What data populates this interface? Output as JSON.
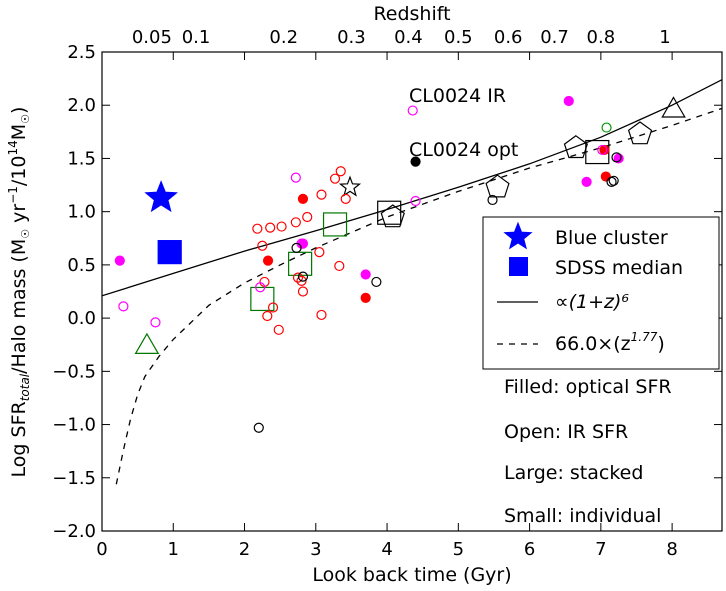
{
  "chart_data": {
    "type": "scatter",
    "xlabel": "Look back time (Gyr)",
    "ylabel": "Log SFR/Halo mass",
    "ylabel_parts": {
      "pre": "Log SFR",
      "sub": "total",
      "mid": "/Halo mass (M",
      "sun": "☉",
      "unit": " yr",
      "exp1": "−1",
      "slash": "/10",
      "exp14": "14",
      "msun": "M",
      "close": ")"
    },
    "toplabel": "Redshift",
    "xlim": [
      0,
      8.7
    ],
    "ylim": [
      -2.0,
      2.5
    ],
    "xticks": [
      "0",
      "1",
      "2",
      "3",
      "4",
      "5",
      "6",
      "7",
      "8"
    ],
    "yticks": [
      "−2.0",
      "−1.5",
      "−1.0",
      "−0.5",
      "0.0",
      "0.5",
      "1.0",
      "1.5",
      "2.0",
      "2.5"
    ],
    "ytick_values": [
      -2.0,
      -1.5,
      -1.0,
      -0.5,
      0.0,
      0.5,
      1.0,
      1.5,
      2.0,
      2.5
    ],
    "top_ticks": [
      {
        "label": "0.05",
        "t": 0.7
      },
      {
        "label": "0.1",
        "t": 1.32
      },
      {
        "label": "0.2",
        "t": 2.55
      },
      {
        "label": "0.3",
        "t": 3.5
      },
      {
        "label": "0.4",
        "t": 4.3
      },
      {
        "label": "0.5",
        "t": 5.0
      },
      {
        "label": "0.6",
        "t": 5.7
      },
      {
        "label": "0.7",
        "t": 6.35
      },
      {
        "label": "0.8",
        "t": 7.0
      },
      {
        "label": "1",
        "t": 7.9
      }
    ],
    "annotations": [
      {
        "text": "CL0024 IR",
        "x": 4.3,
        "y": 2.05
      },
      {
        "text": "CL0024 opt",
        "x": 4.3,
        "y": 1.57
      }
    ],
    "legend": {
      "position": "right",
      "entries": [
        "Blue cluster",
        "SDSS median",
        "∝(1+z)⁶",
        "66.0×(z"
      ],
      "entry4_suffix": ")",
      "entry4_exp": "1.77"
    },
    "notes": [
      "Filled: optical SFR",
      "Open: IR SFR",
      "Large: stacked",
      "Small: individual"
    ],
    "series": [
      {
        "name": "Blue cluster",
        "marker": "star",
        "color": "#0000ff",
        "filled": true,
        "size": "large",
        "points": [
          [
            0.83,
            1.13
          ]
        ]
      },
      {
        "name": "SDSS median",
        "marker": "square",
        "color": "#0000ff",
        "filled": true,
        "size": "large",
        "points": [
          [
            0.95,
            0.62
          ]
        ]
      },
      {
        "name": "Large open triangles",
        "marker": "triangle",
        "color": "#000000",
        "filled": false,
        "size": "large",
        "points": [
          [
            8.02,
            1.95
          ]
        ]
      },
      {
        "name": "Large open triangle green",
        "marker": "triangle",
        "color": "#007700",
        "filled": false,
        "size": "large",
        "points": [
          [
            0.63,
            -0.27
          ]
        ]
      },
      {
        "name": "Large open squares green",
        "marker": "square",
        "color": "#007700",
        "filled": false,
        "size": "large",
        "points": [
          [
            2.25,
            0.18
          ],
          [
            2.78,
            0.51
          ],
          [
            3.27,
            0.88
          ]
        ]
      },
      {
        "name": "Large open squares black",
        "marker": "square",
        "color": "#000000",
        "filled": false,
        "size": "large",
        "points": [
          [
            4.03,
            0.99
          ],
          [
            6.95,
            1.56
          ]
        ]
      },
      {
        "name": "Large open pentagons",
        "marker": "pentagon",
        "color": "#000000",
        "filled": false,
        "size": "large",
        "points": [
          [
            4.08,
            0.95
          ],
          [
            5.55,
            1.23
          ],
          [
            6.65,
            1.6
          ],
          [
            7.55,
            1.73
          ]
        ]
      },
      {
        "name": "Small open star",
        "marker": "star",
        "color": "#000000",
        "filled": false,
        "size": "small",
        "points": [
          [
            3.48,
            1.23
          ]
        ]
      },
      {
        "name": "Open red circles",
        "marker": "circle",
        "color": "#ff0000",
        "filled": false,
        "size": "small",
        "points": [
          [
            2.18,
            0.84
          ],
          [
            2.25,
            0.68
          ],
          [
            2.36,
            0.85
          ],
          [
            2.52,
            0.86
          ],
          [
            2.72,
            0.9
          ],
          [
            2.75,
            0.38
          ],
          [
            2.82,
            0.25
          ],
          [
            2.88,
            0.95
          ],
          [
            3.05,
            0.62
          ],
          [
            3.08,
            1.16
          ],
          [
            3.27,
            1.31
          ],
          [
            3.35,
            1.38
          ],
          [
            3.42,
            1.12
          ],
          [
            3.33,
            0.49
          ],
          [
            3.08,
            0.03
          ],
          [
            2.4,
            0.1
          ],
          [
            2.48,
            -0.11
          ],
          [
            2.32,
            0.02
          ],
          [
            2.28,
            0.34
          ],
          [
            2.8,
            0.35
          ]
        ]
      },
      {
        "name": "Filled red circles",
        "marker": "circle",
        "color": "#ff0000",
        "filled": true,
        "size": "small",
        "points": [
          [
            2.33,
            0.54
          ],
          [
            2.82,
            1.12
          ],
          [
            3.7,
            0.19
          ],
          [
            7.05,
            1.58
          ],
          [
            7.07,
            1.33
          ]
        ]
      },
      {
        "name": "Open magenta circles",
        "marker": "circle",
        "color": "#ff00ff",
        "filled": false,
        "size": "small",
        "points": [
          [
            0.3,
            0.11
          ],
          [
            0.75,
            -0.04
          ],
          [
            2.72,
            1.32
          ],
          [
            2.22,
            0.29
          ],
          [
            2.8,
            0.7
          ],
          [
            4.4,
            1.1
          ],
          [
            4.36,
            1.95
          ],
          [
            7.02,
            1.58
          ]
        ]
      },
      {
        "name": "Filled magenta circles",
        "marker": "circle",
        "color": "#ff00ff",
        "filled": true,
        "size": "small",
        "points": [
          [
            0.25,
            0.54
          ],
          [
            2.82,
            0.7
          ],
          [
            3.7,
            0.41
          ],
          [
            6.55,
            2.04
          ],
          [
            6.8,
            1.28
          ],
          [
            7.25,
            1.5
          ]
        ]
      },
      {
        "name": "Open black circles",
        "marker": "circle",
        "color": "#000000",
        "filled": false,
        "size": "small",
        "points": [
          [
            2.2,
            -1.03
          ],
          [
            2.73,
            0.66
          ],
          [
            2.82,
            0.39
          ],
          [
            3.85,
            0.34
          ],
          [
            5.48,
            1.11
          ],
          [
            7.15,
            1.28
          ],
          [
            7.22,
            1.51
          ],
          [
            7.18,
            1.29
          ]
        ]
      },
      {
        "name": "Filled black circles",
        "marker": "circle",
        "color": "#000000",
        "filled": true,
        "size": "small",
        "points": [
          [
            4.4,
            1.47
          ]
        ]
      },
      {
        "name": "Open green circles",
        "marker": "circle",
        "color": "#009900",
        "filled": false,
        "size": "small",
        "points": [
          [
            7.08,
            1.79
          ]
        ]
      }
    ],
    "curves": [
      {
        "name": "power (1+z)^6",
        "style": "solid",
        "points": [
          [
            0,
            0.21
          ],
          [
            1,
            0.42
          ],
          [
            2,
            0.63
          ],
          [
            3,
            0.82
          ],
          [
            4,
            1.02
          ],
          [
            5,
            1.23
          ],
          [
            6,
            1.45
          ],
          [
            7,
            1.7
          ],
          [
            8,
            2.0
          ],
          [
            8.7,
            2.24
          ]
        ]
      },
      {
        "name": "66.0x z^1.77",
        "style": "dashed",
        "points": [
          [
            0.2,
            -1.56
          ],
          [
            0.3,
            -1.24
          ],
          [
            0.4,
            -0.95
          ],
          [
            0.5,
            -0.72
          ],
          [
            0.6,
            -0.55
          ],
          [
            0.8,
            -0.36
          ],
          [
            1.0,
            -0.2
          ],
          [
            1.5,
            0.12
          ],
          [
            2.0,
            0.33
          ],
          [
            2.5,
            0.5
          ],
          [
            3.0,
            0.66
          ],
          [
            4.0,
            0.95
          ],
          [
            5.0,
            1.19
          ],
          [
            6.0,
            1.41
          ],
          [
            7.0,
            1.6
          ],
          [
            8.0,
            1.81
          ],
          [
            8.7,
            1.97
          ]
        ]
      }
    ]
  }
}
